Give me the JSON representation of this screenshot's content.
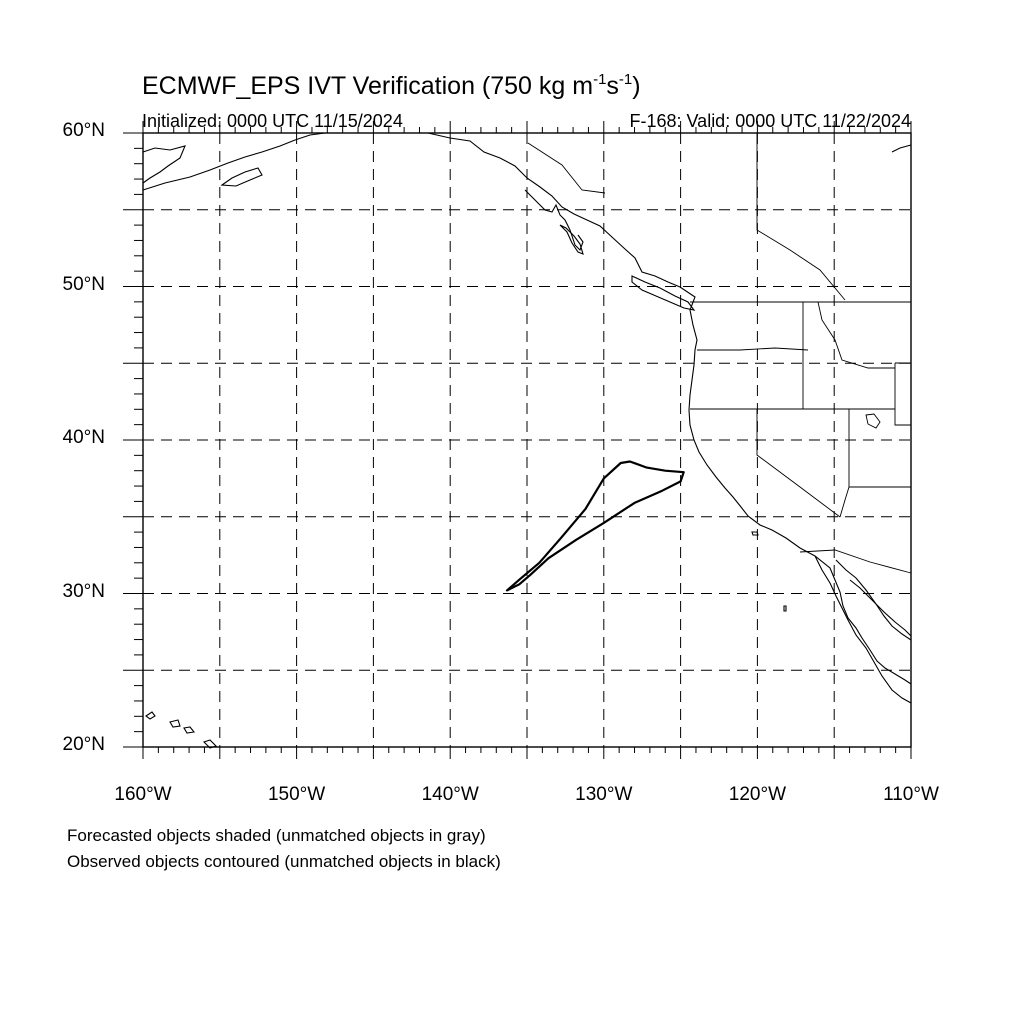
{
  "title": {
    "prefix": "ECMWF_EPS IVT Verification (750 kg m",
    "exp1": "-1",
    "mid": "s",
    "exp2": "-1",
    "suffix": ")"
  },
  "subtitle_left": "Initialized: 0000 UTC 11/15/2024",
  "subtitle_right": "F-168: Valid: 0000 UTC 11/22/2024",
  "map": {
    "lon_range": [
      -160,
      -110
    ],
    "lat_range": [
      20,
      60
    ],
    "grid_spacing_deg": 5,
    "label_spacing_deg": 10,
    "grid_style": "dashed",
    "lat_labels": [
      "20°N",
      "30°N",
      "40°N",
      "50°N",
      "60°N"
    ],
    "lon_labels": [
      "160°W",
      "150°W",
      "140°W",
      "130°W",
      "120°W",
      "110°W"
    ],
    "line_color": "#000000"
  },
  "observed_object": {
    "label": "observed-ivt-object-unmatched",
    "color": "#000000",
    "outline": [
      [
        -136.3,
        30.2
      ],
      [
        -135.5,
        30.6
      ],
      [
        -134.8,
        31.2
      ],
      [
        -133.6,
        32.3
      ],
      [
        -131.8,
        33.5
      ],
      [
        -130.0,
        34.6
      ],
      [
        -128.0,
        35.9
      ],
      [
        -126.2,
        36.7
      ],
      [
        -125.0,
        37.3
      ],
      [
        -124.8,
        37.9
      ],
      [
        -126.0,
        38.0
      ],
      [
        -127.2,
        38.2
      ],
      [
        -128.3,
        38.6
      ],
      [
        -128.9,
        38.5
      ],
      [
        -130.0,
        37.5
      ],
      [
        -131.2,
        35.5
      ],
      [
        -132.8,
        33.6
      ],
      [
        -134.2,
        32.0
      ],
      [
        -135.5,
        30.9
      ],
      [
        -136.3,
        30.2
      ]
    ]
  },
  "notes": [
    "Forecasted objects shaded (unmatched objects in gray)",
    "Observed objects contoured (unmatched objects in black)"
  ]
}
